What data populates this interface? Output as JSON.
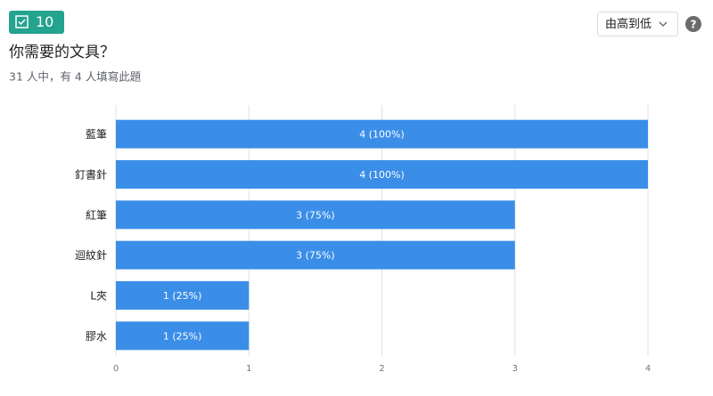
{
  "header": {
    "question_number": "10",
    "title": "你需要的文具？",
    "subtitle": "31 人中，有 4 人填寫此題",
    "sort_option": "由高到低"
  },
  "chart_data": {
    "type": "barh",
    "categories": [
      "藍筆",
      "釘書針",
      "紅筆",
      "迴紋針",
      "L夾",
      "膠水"
    ],
    "values": [
      4,
      4,
      3,
      3,
      1,
      1
    ],
    "value_labels": [
      "4 (100%)",
      "4 (100%)",
      "3 (75%)",
      "3 (75%)",
      "1 (25%)",
      "1 (25%)"
    ],
    "color": "#3b8ee8",
    "xlim": [
      0,
      4
    ],
    "xticks": [
      0,
      1,
      2,
      3,
      4
    ],
    "grid": true
  }
}
